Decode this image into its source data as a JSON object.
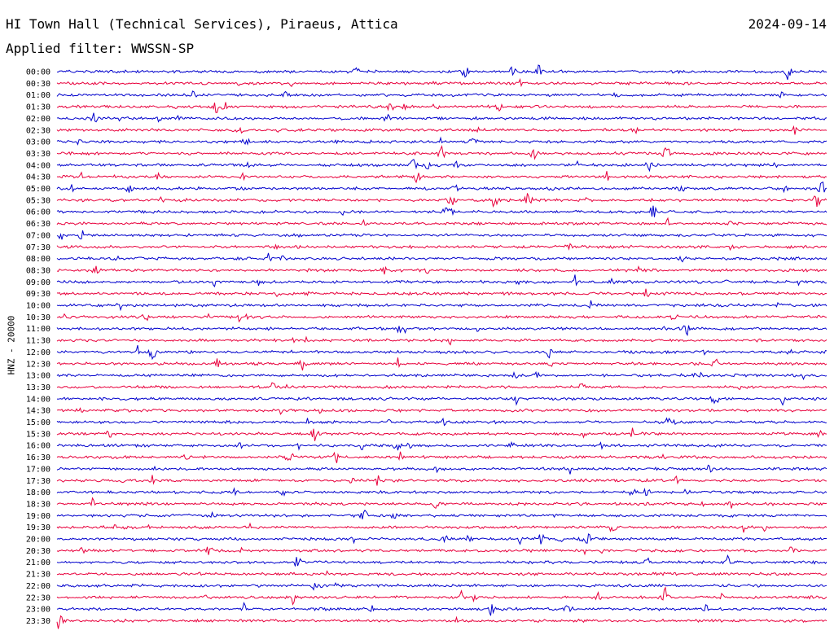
{
  "header": {
    "station": "HI Town Hall (Technical Services), Piraeus, Attica",
    "date": "2024-09-14",
    "filter": "Applied filter: WWSSN-SP"
  },
  "chart_data": {
    "type": "line",
    "ylabel": "HNZ - 20000",
    "row_labels": [
      "00:00",
      "00:30",
      "01:00",
      "01:30",
      "02:00",
      "02:30",
      "03:00",
      "03:30",
      "04:00",
      "04:30",
      "05:00",
      "05:30",
      "06:00",
      "06:30",
      "07:00",
      "07:30",
      "08:00",
      "08:30",
      "09:00",
      "09:30",
      "10:00",
      "10:30",
      "11:00",
      "11:30",
      "12:00",
      "12:30",
      "13:00",
      "13:30",
      "14:00",
      "14:30",
      "15:00",
      "15:30",
      "16:00",
      "16:30",
      "17:00",
      "17:30",
      "18:00",
      "18:30",
      "19:00",
      "19:30",
      "20:00",
      "20:30",
      "21:00",
      "21:30",
      "22:00",
      "22:30",
      "23:00",
      "23:30"
    ],
    "colors": {
      "even": "#0000cc",
      "odd": "#e8003c"
    },
    "grid": false
  }
}
